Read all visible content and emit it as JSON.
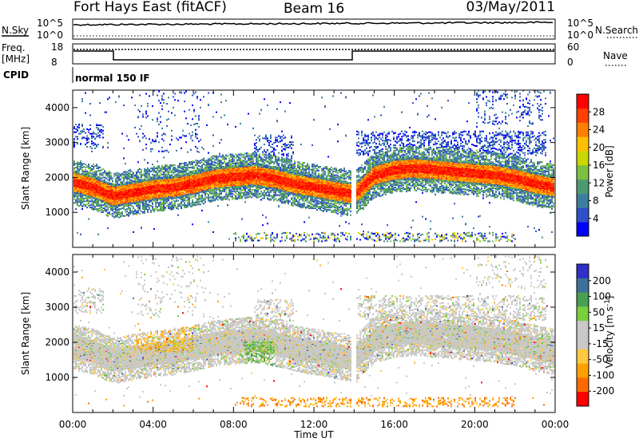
{
  "header": {
    "station": "Fort Hays East (fitACF)",
    "beam": "Beam 16",
    "date": "03/May/2011"
  },
  "status_panels": {
    "nsky_label": "N.Sky",
    "nsearch_label": "N.Search",
    "noise_ticks_left": [
      "10^5",
      "10^0"
    ],
    "noise_ticks_right": [
      "10^5",
      "10^0"
    ],
    "freq_label_line1": "Freq.",
    "freq_label_line2": "[MHz]",
    "freq_ticks": [
      "18",
      "8"
    ],
    "nave_label": "Nave",
    "nave_ticks": [
      "60",
      "0"
    ],
    "cpid_label": "CPID",
    "cpid_value": "normal 150 IF"
  },
  "colors": {
    "power_scale": [
      "#0000ff",
      "#3050c8",
      "#3c7ea0",
      "#4e9a70",
      "#7cc040",
      "#c8d800",
      "#ffc000",
      "#ff8000",
      "#ff4000",
      "#ff0000"
    ],
    "velocity_scale": [
      "#ff0000",
      "#ff6a00",
      "#ffa000",
      "#ffc840",
      "#c8c8c8",
      "#c8c8c8",
      "#78d03c",
      "#48a050",
      "#3c7098",
      "#3030c8"
    ]
  },
  "chart_data": [
    {
      "type": "heatmap",
      "title": "",
      "xlabel": "Time UT",
      "ylabel": "Slant Range [km]",
      "x_ticks": [
        "00:00",
        "04:00",
        "08:00",
        "12:00",
        "16:00",
        "20:00",
        "00:00"
      ],
      "y_ticks": [
        "1000",
        "2000",
        "3000",
        "4000"
      ],
      "ylim": [
        0,
        4500
      ],
      "colorbar_label": "Power [dB]",
      "colorbar_ticks": [
        "4",
        "8",
        "12",
        "16",
        "20",
        "24",
        "28"
      ],
      "band_center_km": [
        [
          0,
          1850
        ],
        [
          1,
          1700
        ],
        [
          2,
          1450
        ],
        [
          3,
          1550
        ],
        [
          4,
          1650
        ],
        [
          5,
          1700
        ],
        [
          6,
          1800
        ],
        [
          7,
          1950
        ],
        [
          8,
          2000
        ],
        [
          9,
          2050
        ],
        [
          10,
          1950
        ],
        [
          11,
          1800
        ],
        [
          12,
          1700
        ],
        [
          13,
          1600
        ],
        [
          14,
          1500
        ],
        [
          15,
          2050
        ],
        [
          16,
          2200
        ],
        [
          17,
          2250
        ],
        [
          18,
          2200
        ],
        [
          19,
          2150
        ],
        [
          20,
          2100
        ],
        [
          21,
          2050
        ],
        [
          22,
          1950
        ],
        [
          23,
          1800
        ],
        [
          24,
          1700
        ]
      ]
    },
    {
      "type": "heatmap",
      "title": "",
      "xlabel": "Time UT",
      "ylabel": "Slant Range [km]",
      "x_ticks": [
        "00:00",
        "04:00",
        "08:00",
        "12:00",
        "16:00",
        "20:00",
        "00:00"
      ],
      "y_ticks": [
        "1000",
        "2000",
        "3000",
        "4000"
      ],
      "ylim": [
        0,
        4500
      ],
      "colorbar_label": "Velocity [m s^-1]",
      "colorbar_ticks": [
        "200",
        "100",
        "50",
        "15",
        "-15",
        "-50",
        "-100",
        "-200"
      ]
    }
  ]
}
